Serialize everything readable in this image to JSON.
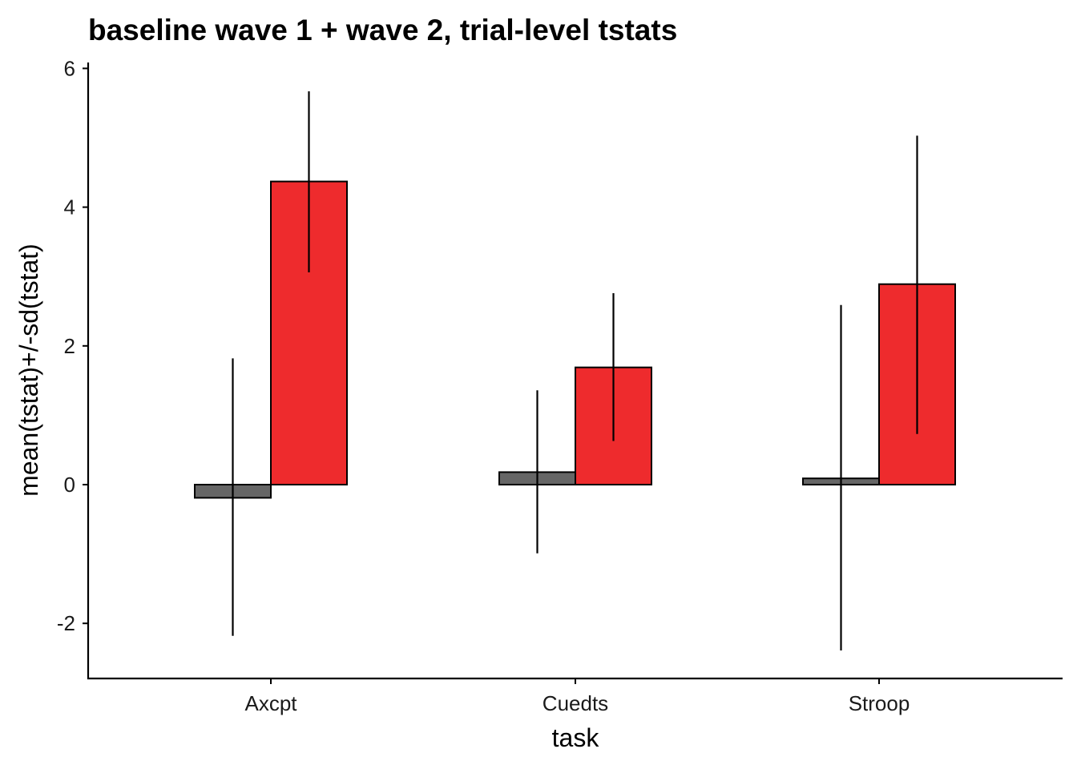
{
  "chart_data": {
    "type": "bar",
    "title": "baseline wave 1 + wave 2, trial-level tstats",
    "xlabel": "task",
    "ylabel": "mean(tstat)+/-sd(tstat)",
    "categories": [
      "Axcpt",
      "Cuedts",
      "Stroop"
    ],
    "ylim": [
      -2.8,
      6.1
    ],
    "yticks": [
      -2,
      0,
      2,
      4,
      6
    ],
    "ytick_labels": [
      "-2",
      "0",
      "2",
      "4",
      "6"
    ],
    "grid": false,
    "legend": "none",
    "series": [
      {
        "color": "#666666",
        "values": [
          -0.19,
          0.18,
          0.09
        ],
        "err_low": [
          -2.18,
          -0.99,
          -2.39
        ],
        "err_high": [
          1.82,
          1.36,
          2.59
        ]
      },
      {
        "color": "#ee2b2d",
        "values": [
          4.37,
          1.69,
          2.89
        ],
        "err_low": [
          3.06,
          0.63,
          0.73
        ],
        "err_high": [
          5.67,
          2.76,
          5.03
        ]
      }
    ]
  }
}
